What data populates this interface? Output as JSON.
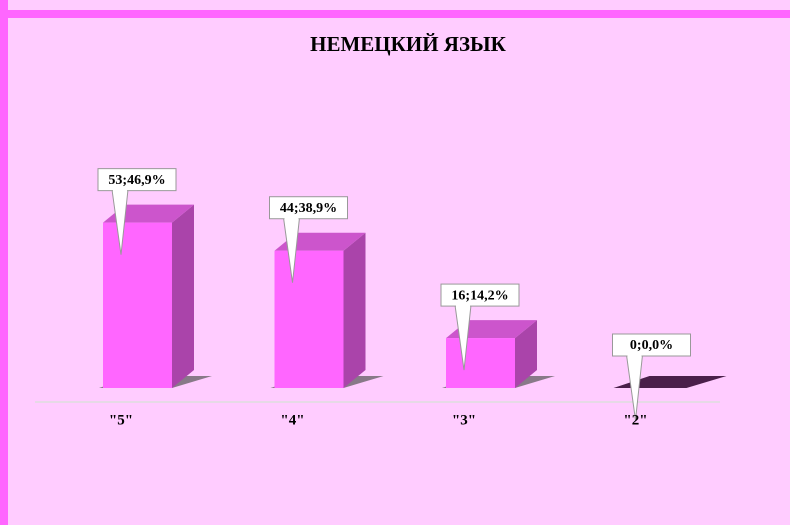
{
  "chart_data": {
    "type": "bar3d",
    "title": "НЕМЕЦКИЙ ЯЗЫК",
    "categories": [
      "\"5\"",
      "\"4\"",
      "\"3\"",
      "\"2\""
    ],
    "values": [
      53,
      44,
      16,
      0
    ],
    "percents": [
      46.9,
      38.9,
      14.2,
      0.0
    ],
    "value_labels": [
      "53;46,9%",
      "44;38,9%",
      "16;14,2%",
      "0;0,0%"
    ],
    "color": "#ff66ff"
  }
}
